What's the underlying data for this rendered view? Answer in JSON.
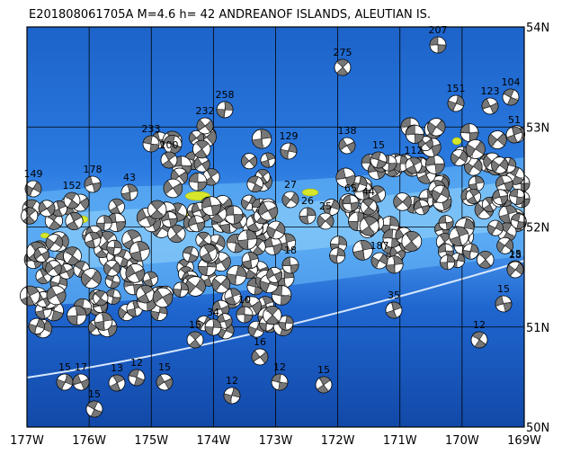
{
  "title": "E201808061705A M=4.6 h= 42 ANDREANOF ISLANDS, ALEUTIAN IS.",
  "lon_labels": [
    "177W",
    "176W",
    "175W",
    "174W",
    "173W",
    "172W",
    "171W",
    "170W",
    "169W"
  ],
  "lat_labels": [
    "54N",
    "53N",
    "52N",
    "51N",
    "50N"
  ],
  "events": [
    {
      "depth": "207"
    },
    {
      "depth": "275"
    },
    {
      "depth": "258"
    },
    {
      "depth": "232"
    },
    {
      "depth": "233"
    },
    {
      "depth": "200"
    },
    {
      "depth": "129"
    },
    {
      "depth": "138"
    },
    {
      "depth": "15"
    },
    {
      "depth": "112"
    },
    {
      "depth": "151"
    },
    {
      "depth": "123"
    },
    {
      "depth": "104"
    },
    {
      "depth": "51"
    },
    {
      "depth": "149"
    },
    {
      "depth": "178"
    },
    {
      "depth": "152"
    },
    {
      "depth": "43"
    },
    {
      "depth": "27"
    },
    {
      "depth": "65"
    },
    {
      "depth": "44"
    },
    {
      "depth": "26"
    },
    {
      "depth": "25"
    },
    {
      "depth": "10"
    },
    {
      "depth": "15"
    },
    {
      "depth": "34"
    },
    {
      "depth": "16"
    },
    {
      "depth": "12"
    },
    {
      "depth": "15"
    },
    {
      "depth": "12"
    },
    {
      "depth": "15"
    },
    {
      "depth": "12"
    },
    {
      "depth": "13"
    },
    {
      "depth": "15"
    },
    {
      "depth": "17"
    },
    {
      "depth": "15"
    },
    {
      "depth": "35"
    },
    {
      "depth": "187"
    },
    {
      "depth": "15"
    },
    {
      "depth": "12"
    },
    {
      "depth": "15"
    },
    {
      "depth": "28"
    },
    {
      "depth": "18"
    }
  ]
}
